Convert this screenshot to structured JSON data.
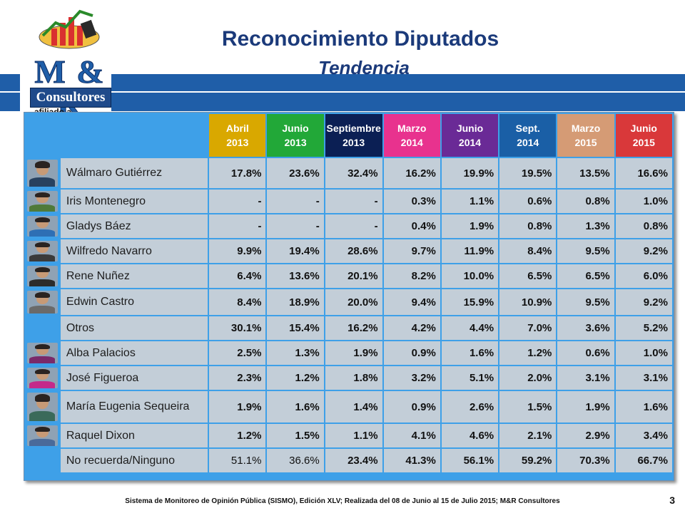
{
  "title": "Reconocimiento Diputados",
  "subtitle": "Tendencia",
  "logo": {
    "text": "M & R",
    "consultores": "Consultores",
    "afiliado": "afiliado a"
  },
  "columns": [
    {
      "line1": "Abril",
      "line2": "2013",
      "color": "#d9a800"
    },
    {
      "line1": "Junio",
      "line2": "2013",
      "color": "#22a838"
    },
    {
      "line1": "Septiembre",
      "line2": "2013",
      "color": "#0b1f54"
    },
    {
      "line1": "Marzo",
      "line2": "2014",
      "color": "#e8328e"
    },
    {
      "line1": "Junio",
      "line2": "2014",
      "color": "#6a2a96"
    },
    {
      "line1": "Sept.",
      "line2": "2014",
      "color": "#1a5fa6"
    },
    {
      "line1": "Marzo",
      "line2": "2015",
      "color": "#d59b75"
    },
    {
      "line1": "Junio",
      "line2": "2015",
      "color": "#d9383a"
    }
  ],
  "rows": [
    {
      "name": "Wálmaro Gutiérrez",
      "values": [
        "17.8%",
        "23.6%",
        "32.4%",
        "16.2%",
        "19.9%",
        "19.5%",
        "13.5%",
        "16.6%"
      ],
      "avatar": "male-photo",
      "body": "#28415f"
    },
    {
      "name": "Iris Montenegro",
      "values": [
        "-",
        "-",
        "-",
        "0.3%",
        "1.1%",
        "0.6%",
        "0.8%",
        "1.0%"
      ],
      "avatar": "female-photo",
      "body": "#4f7a3a"
    },
    {
      "name": "Gladys Báez",
      "values": [
        "-",
        "-",
        "-",
        "0.4%",
        "1.9%",
        "0.8%",
        "1.3%",
        "0.8%"
      ],
      "avatar": "female-photo",
      "body": "#2e6fb4"
    },
    {
      "name": "Wilfredo Navarro",
      "values": [
        "9.9%",
        "19.4%",
        "28.6%",
        "9.7%",
        "11.9%",
        "8.4%",
        "9.5%",
        "9.2%"
      ],
      "avatar": "male-photo",
      "body": "#3a3a3a"
    },
    {
      "name": "Rene Nuñez",
      "values": [
        "6.4%",
        "13.6%",
        "20.1%",
        "8.2%",
        "10.0%",
        "6.5%",
        "6.5%",
        "6.0%"
      ],
      "avatar": "male-photo",
      "body": "#2c2c2c"
    },
    {
      "name": "Edwin Castro",
      "values": [
        "8.4%",
        "18.9%",
        "20.0%",
        "9.4%",
        "15.9%",
        "10.9%",
        "9.5%",
        "9.2%"
      ],
      "avatar": "male-photo",
      "body": "#6a6a6a"
    },
    {
      "name": "Otros",
      "values": [
        "30.1%",
        "15.4%",
        "16.2%",
        "4.2%",
        "4.4%",
        "7.0%",
        "3.6%",
        "5.2%"
      ],
      "avatar": "none",
      "body": ""
    },
    {
      "name": "Alba Palacios",
      "values": [
        "2.5%",
        "1.3%",
        "1.9%",
        "0.9%",
        "1.6%",
        "1.2%",
        "0.6%",
        "1.0%"
      ],
      "avatar": "female-photo",
      "body": "#7a2a6a"
    },
    {
      "name": "José Figueroa",
      "values": [
        "2.3%",
        "1.2%",
        "1.8%",
        "3.2%",
        "5.1%",
        "2.0%",
        "3.1%",
        "3.1%"
      ],
      "avatar": "male-photo",
      "body": "#c42a8a"
    },
    {
      "name": "María Eugenia Sequeira",
      "values": [
        "1.9%",
        "1.6%",
        "1.4%",
        "0.9%",
        "2.6%",
        "1.5%",
        "1.9%",
        "1.6%"
      ],
      "avatar": "female-photo",
      "body": "#3a6a5a"
    },
    {
      "name": "Raquel Dixon",
      "values": [
        "1.2%",
        "1.5%",
        "1.1%",
        "4.1%",
        "4.6%",
        "2.1%",
        "2.9%",
        "3.4%"
      ],
      "avatar": "female-photo",
      "body": "#4a6a9a"
    },
    {
      "name": "No recuerda/Ninguno",
      "values": [
        "51.1%",
        "36.6%",
        "23.4%",
        "41.3%",
        "56.1%",
        "59.2%",
        "70.3%",
        "66.7%"
      ],
      "avatar": "none",
      "body": "",
      "light_cols": [
        0,
        1
      ]
    }
  ],
  "footer": "Sistema de Monitoreo de Opinión Pública (SISMO), Edición XLV; Realizada del 08 de Junio al 15 de Julio 2015; M&R Consultores",
  "page_number": "3"
}
